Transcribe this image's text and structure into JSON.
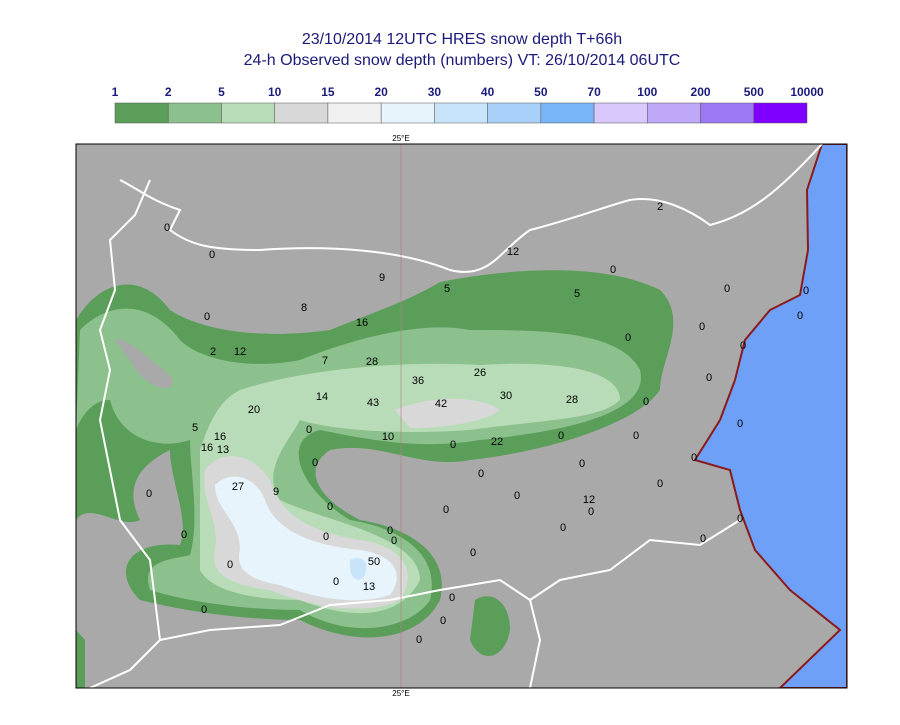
{
  "header": {
    "title": "23/10/2014 12UTC HRES snow depth T+66h",
    "subtitle": "24-h Observed snow depth (numbers) VT: 26/10/2014 06UTC"
  },
  "legend": {
    "labels": [
      1,
      2,
      5,
      10,
      15,
      20,
      30,
      40,
      50,
      70,
      100,
      200,
      500,
      10000
    ],
    "colors": [
      "#5a9e5a",
      "#8cc08c",
      "#b8dcb8",
      "#d8d8d8",
      "#f0f0f0",
      "#e8f4fc",
      "#c8e4fa",
      "#a8d0f8",
      "#78b4f8",
      "#d8c8fc",
      "#c0a8f8",
      "#9c78f4",
      "#8000ff"
    ]
  },
  "map": {
    "meridian_label_top": "25°E",
    "meridian_label_bottom": "25°E",
    "observations": [
      0,
      0,
      9,
      12,
      2,
      0,
      5,
      5,
      0,
      0,
      0,
      8,
      0,
      16,
      0,
      0,
      0,
      2,
      12,
      7,
      28,
      26,
      0,
      36,
      14,
      43,
      42,
      30,
      28,
      0,
      20,
      5,
      0,
      0,
      16,
      10,
      0,
      22,
      0,
      0,
      16,
      13,
      0,
      0,
      0,
      0,
      27,
      9,
      0,
      0,
      0,
      12,
      0,
      0,
      0,
      0,
      0,
      0,
      0,
      0,
      0,
      0,
      0,
      0,
      50,
      0,
      13,
      0,
      0,
      0,
      0
    ]
  }
}
